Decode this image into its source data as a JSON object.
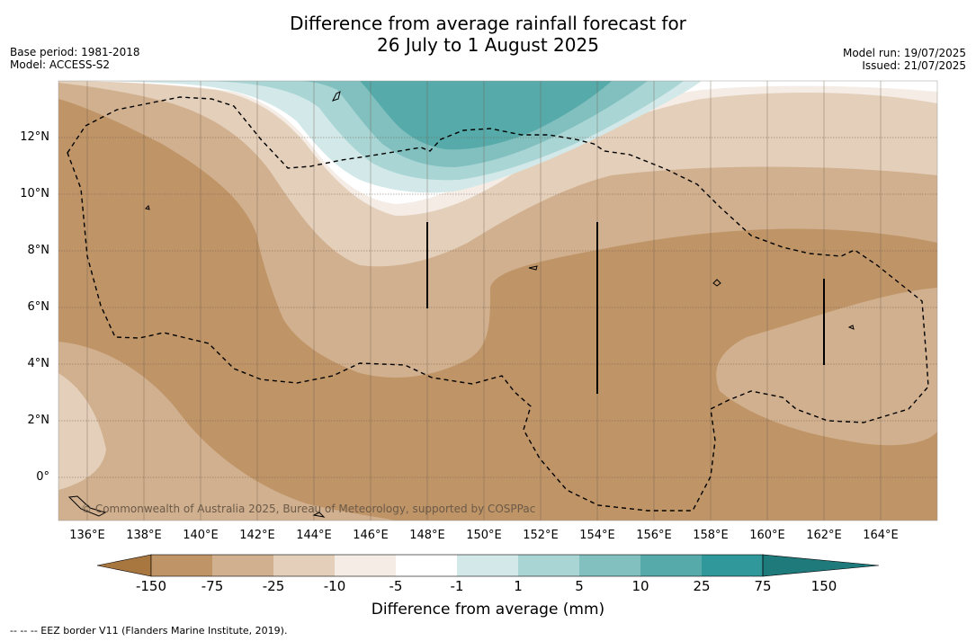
{
  "title": {
    "line1": "Difference from average rainfall forecast for",
    "line2": "26 July to 1 August 2025"
  },
  "meta": {
    "base_period": "Base period: 1981-2018",
    "model": "Model: ACCESS-S2",
    "model_run": "Model run: 19/07/2025",
    "issued": "Issued: 21/07/2025"
  },
  "map": {
    "lat_labels": [
      "12°N",
      "10°N",
      "8°N",
      "6°N",
      "4°N",
      "2°N",
      "0°"
    ],
    "lon_labels": [
      "136°E",
      "138°E",
      "140°E",
      "142°E",
      "144°E",
      "146°E",
      "148°E",
      "150°E",
      "152°E",
      "154°E",
      "156°E",
      "158°E",
      "160°E",
      "162°E",
      "164°E"
    ],
    "copyright": "© Commonwealth of Australia 2025, Bureau of Meteorology, supported by COSPPac"
  },
  "legend": {
    "labels": [
      "-150",
      "-75",
      "-25",
      "-10",
      "-5",
      "-1",
      "1",
      "5",
      "10",
      "25",
      "75",
      "150"
    ],
    "colors": [
      "#a8763f",
      "#bf9467",
      "#d1b08f",
      "#e3cfba",
      "#f4ece5",
      "#ffffff",
      "#d3e9e9",
      "#aad5d5",
      "#82c0c0",
      "#57aaaa",
      "#30989a",
      "#1f7a7c"
    ],
    "title": "Difference from average (mm)"
  },
  "footnote": "--  --  -- EEZ border V11 (Flanders Marine Institute, 2019)."
}
